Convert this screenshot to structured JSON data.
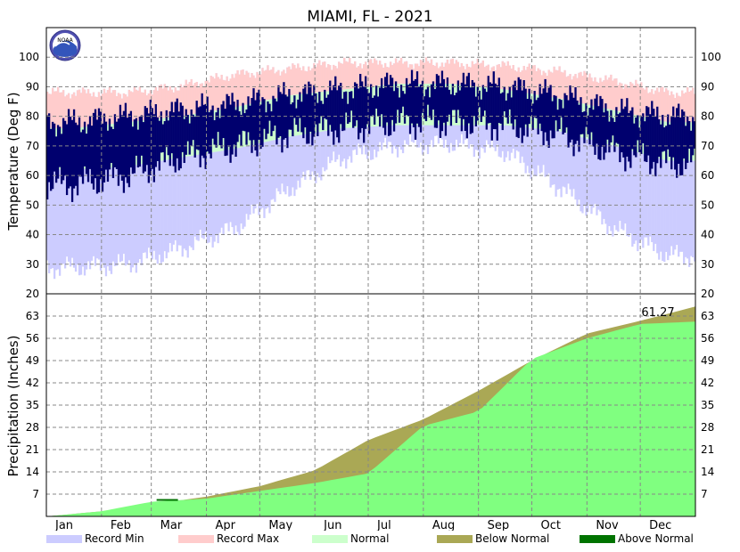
{
  "chart_data": [
    {
      "panel": "temperature",
      "type": "bar",
      "title": "MIAMI, FL - 2021",
      "ylabel": "Temperature (Deg F)",
      "ylim": [
        20,
        110
      ],
      "yticks": [
        30,
        40,
        50,
        60,
        70,
        80,
        90,
        100
      ],
      "months": [
        "Jan",
        "Feb",
        "Mar",
        "Apr",
        "May",
        "Jun",
        "Jul",
        "Aug",
        "Sep",
        "Oct",
        "Nov",
        "Dec"
      ],
      "monthly_record_min": [
        29,
        30,
        35,
        42,
        55,
        66,
        70,
        71,
        68,
        56,
        42,
        33
      ],
      "monthly_record_max": [
        88,
        88,
        90,
        94,
        96,
        98,
        98,
        98,
        97,
        95,
        92,
        88
      ],
      "monthly_normal_low": [
        62,
        63,
        66,
        69,
        73,
        76,
        77,
        77,
        77,
        75,
        70,
        65
      ],
      "monthly_normal_high": [
        76,
        78,
        80,
        83,
        87,
        89,
        91,
        91,
        89,
        86,
        82,
        78
      ],
      "monthly_actual_low": [
        57,
        60,
        66,
        70,
        74,
        76,
        78,
        78,
        77,
        74,
        68,
        64
      ],
      "monthly_actual_high": [
        78,
        80,
        82,
        84,
        87,
        89,
        91,
        91,
        90,
        87,
        82,
        80
      ],
      "grid": true
    },
    {
      "panel": "precipitation",
      "type": "area",
      "ylabel": "Precipitation (Inches)",
      "ylim": [
        0,
        70
      ],
      "yticks": [
        7,
        14,
        21,
        28,
        35,
        42,
        49,
        56,
        63
      ],
      "months": [
        "Jan",
        "Feb",
        "Mar",
        "Apr",
        "May",
        "Jun",
        "Jul",
        "Aug",
        "Sep",
        "Oct",
        "Nov",
        "Dec"
      ],
      "cumulative_normal_month_end": [
        1.6,
        3.8,
        6.2,
        9.5,
        14.5,
        24.0,
        30.5,
        39.5,
        49.0,
        57.5,
        61.5,
        66.0
      ],
      "cumulative_actual_month_end": [
        1.6,
        4.6,
        5.6,
        8.0,
        10.5,
        13.5,
        28.5,
        33.0,
        49.5,
        56.0,
        60.5,
        61.27
      ],
      "annotation": "61.27",
      "grid": true
    }
  ],
  "legend": [
    {
      "label": "Record Min",
      "color": "#ccccff"
    },
    {
      "label": "Record Max",
      "color": "#ffcccc"
    },
    {
      "label": "Normal",
      "color": "#ccffcc"
    },
    {
      "label": "Below Normal",
      "color": "#aaa855"
    },
    {
      "label": "Above Normal",
      "color": "#007300"
    }
  ],
  "colors": {
    "actual": "#00006e",
    "normal_band": "#ccffcc",
    "record_min": "#ccccff",
    "record_max": "#ffcccc",
    "precip_actual": "#80ff80",
    "below_normal": "#aaa855",
    "above_normal": "#007300"
  },
  "logo_text": "NOAA",
  "right_axis_bottom_tick": "20"
}
